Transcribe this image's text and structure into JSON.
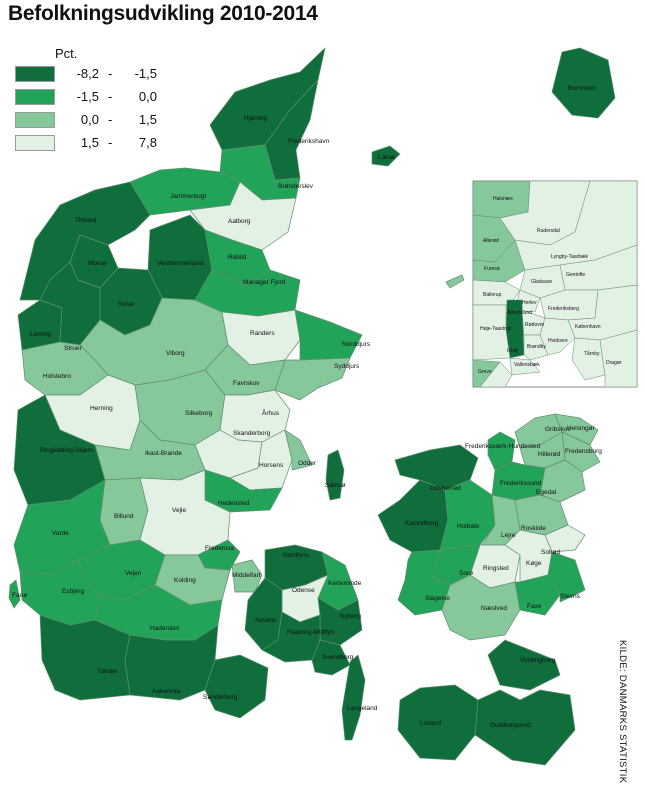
{
  "title": "Befolkningsudvikling 2010-2014",
  "legend": {
    "unit": "Pct.",
    "classes": [
      {
        "low": "-8,2",
        "sep": "-",
        "high": "-1,5",
        "color": "#0f6e3c"
      },
      {
        "low": "-1,5",
        "sep": "-",
        "high": "0,0",
        "color": "#22a35a"
      },
      {
        "low": "0,0",
        "sep": "-",
        "high": "1,5",
        "color": "#86c79c"
      },
      {
        "low": "1,5",
        "sep": "-",
        "high": "7,8",
        "color": "#e3f1e5"
      }
    ]
  },
  "source": "KILDE: DANMARKS STATISTIK",
  "municipalities": {
    "hjoerring": "Hjørring",
    "frederikshavn": "Frederikshavn",
    "laesoe": "Læsø",
    "broenderslev": "Brønderslev",
    "jammerbugt": "Jammerbugt",
    "thisted": "Thisted",
    "aalborg": "Aalborg",
    "morsoe": "Morsø",
    "vesthimmerland": "Vesthimmerland",
    "rebild": "Rebild",
    "mariagerfjord": "Mariager Fjord",
    "skive": "Skive",
    "lemvig": "Lemvig",
    "struer": "Struer",
    "holstebro": "Holstebro",
    "viborg": "Viborg",
    "randers": "Randers",
    "norddjurs": "Norddjurs",
    "syddjurs": "Syddjurs",
    "favrskov": "Favrskov",
    "herning": "Herning",
    "silkeborg": "Silkeborg",
    "aarhus": "Århus",
    "skanderborg": "Skanderborg",
    "ringkoebing": "Ringkøbing-Skjern",
    "ikastbrande": "Ikast-Brande",
    "horsens": "Horsens",
    "odder": "Odder",
    "samsoe": "Samsø",
    "hedensted": "Hedensted",
    "billund": "Billund",
    "vejle": "Vejle",
    "varde": "Varde",
    "fredericia": "Fredericia",
    "vejen": "Vejen",
    "kolding": "Kolding",
    "middelfart": "Middelfart",
    "esbjerg": "Esbjerg",
    "fanoe": "Fanø",
    "haderslev": "Haderslev",
    "toender": "Tønder",
    "aabenraa": "Aabenraa",
    "soenderborg": "Sønderborg",
    "nordfyns": "Nordfyns",
    "kerteminde": "Kerteminde",
    "odense": "Odense",
    "assens": "Assens",
    "nyborg": "Nyborg",
    "faaborg": "Faaborg-Midtfyn",
    "svendborg": "Svendborg",
    "langeland": "Langeland",
    "bornholm": "Bornholm",
    "odsherred": "Odsherred",
    "kalundborg": "Kalundborg",
    "holbaek": "Holbæk",
    "frederiksvaerk": "Frederiksværk-Hundested",
    "gribskov": "Gribskov",
    "helsingoer": "Helsingør",
    "hilleroed": "Hillerød",
    "fredensborg": "Fredensborg",
    "frederikssund": "Frederikssund",
    "egedal": "Egedal",
    "roskilde": "Roskilde",
    "lejre": "Lejre",
    "soelroed": "Solrød",
    "ringsted": "Ringsted",
    "koege": "Køge",
    "soroe": "Sorø",
    "slagelse": "Slagelse",
    "naestved": "Næstved",
    "faxe": "Faxe",
    "stevns": "Stevns",
    "vordingborg": "Vordingborg",
    "lolland": "Lolland",
    "guldborgsund": "Guldborgsund"
  },
  "inset_labels": {
    "halsnaes": "Halsnæs",
    "allerod": "Allerød",
    "rudersdal": "Rudersdal",
    "furesoe": "Furesø",
    "lyngby": "Lyngby-Taarbæk",
    "gentofte": "Gentofte",
    "gladsaxe": "Gladsaxe",
    "ballerup": "Ballerup",
    "herlev": "Herlev",
    "rodovre": "Rødovre",
    "albertslund": "Albertslund",
    "frederiksberg": "Frederiksberg",
    "hoejetaastrup": "Høje-Taastrup",
    "kobenhavn": "København",
    "brondby": "Brøndby",
    "hvidovre": "Hvidovre",
    "vallensbaek": "Vallensbæk",
    "ishoj": "Ishøj",
    "taarnby": "Tårnby",
    "dragoer": "Dragør",
    "greve": "Greve"
  }
}
